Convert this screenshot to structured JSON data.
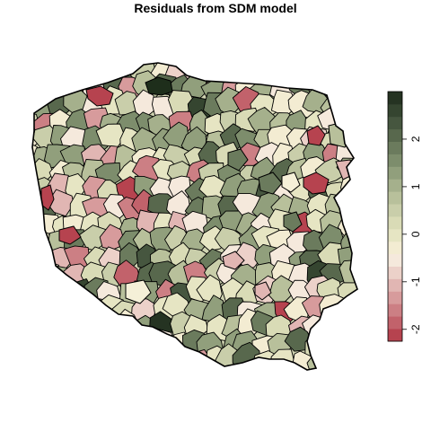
{
  "title": "Residuals from SDM model",
  "legend": {
    "min": -2.25,
    "max": 3.0,
    "ticks": [
      {
        "label": "-2",
        "value": -2
      },
      {
        "label": "-1",
        "value": -1
      },
      {
        "label": "0",
        "value": 0
      },
      {
        "label": "1",
        "value": 1
      },
      {
        "label": "2",
        "value": 2
      }
    ],
    "colors": [
      "#b6434f",
      "#c2626b",
      "#cc7f84",
      "#d79b9c",
      "#e1b6b3",
      "#ecd1c9",
      "#f5e9dc",
      "#f3ecd2",
      "#e6e5c3",
      "#d9dbb6",
      "#c9ceaa",
      "#b8c09b",
      "#a5b08c",
      "#919f7c",
      "#7d8d6c",
      "#6b7b5d",
      "#58684d",
      "#46563f",
      "#354530",
      "#253322"
    ],
    "side": "right"
  },
  "map": {
    "region": "Poland",
    "units": "districts",
    "outline_color": "#000000",
    "colors": {
      "strong_positive": "#1e2e1b",
      "positive": "#6b7b5d",
      "mild_positive": "#b8c09b",
      "near_zero": "#f5f0d8",
      "mild_negative": "#e1b6b3",
      "negative": "#b6434f"
    }
  }
}
